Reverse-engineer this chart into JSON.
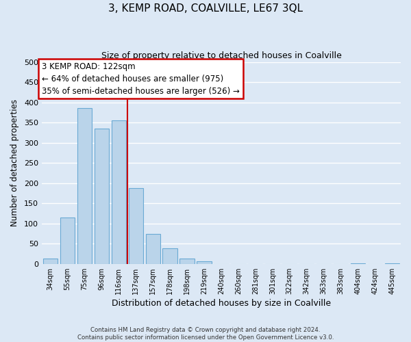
{
  "title": "3, KEMP ROAD, COALVILLE, LE67 3QL",
  "subtitle": "Size of property relative to detached houses in Coalville",
  "xlabel": "Distribution of detached houses by size in Coalville",
  "ylabel": "Number of detached properties",
  "bar_labels": [
    "34sqm",
    "55sqm",
    "75sqm",
    "96sqm",
    "116sqm",
    "137sqm",
    "157sqm",
    "178sqm",
    "198sqm",
    "219sqm",
    "240sqm",
    "260sqm",
    "281sqm",
    "301sqm",
    "322sqm",
    "342sqm",
    "363sqm",
    "383sqm",
    "404sqm",
    "424sqm",
    "445sqm"
  ],
  "bar_values": [
    13,
    115,
    385,
    335,
    355,
    188,
    75,
    38,
    13,
    6,
    0,
    0,
    0,
    0,
    0,
    0,
    0,
    0,
    2,
    0,
    2
  ],
  "bar_color": "#bad4ea",
  "bar_edge_color": "#6aaad4",
  "vline_x": 4.5,
  "vline_color": "#cc0000",
  "annotation_box_text": "3 KEMP ROAD: 122sqm\n← 64% of detached houses are smaller (975)\n35% of semi-detached houses are larger (526) →",
  "annotation_box_edgecolor": "#cc0000",
  "annotation_box_facecolor": "#ffffff",
  "ylim": [
    0,
    500
  ],
  "yticks": [
    0,
    50,
    100,
    150,
    200,
    250,
    300,
    350,
    400,
    450,
    500
  ],
  "grid_color": "#ffffff",
  "bg_color": "#dce8f5",
  "footer": "Contains HM Land Registry data © Crown copyright and database right 2024.\nContains public sector information licensed under the Open Government Licence v3.0."
}
